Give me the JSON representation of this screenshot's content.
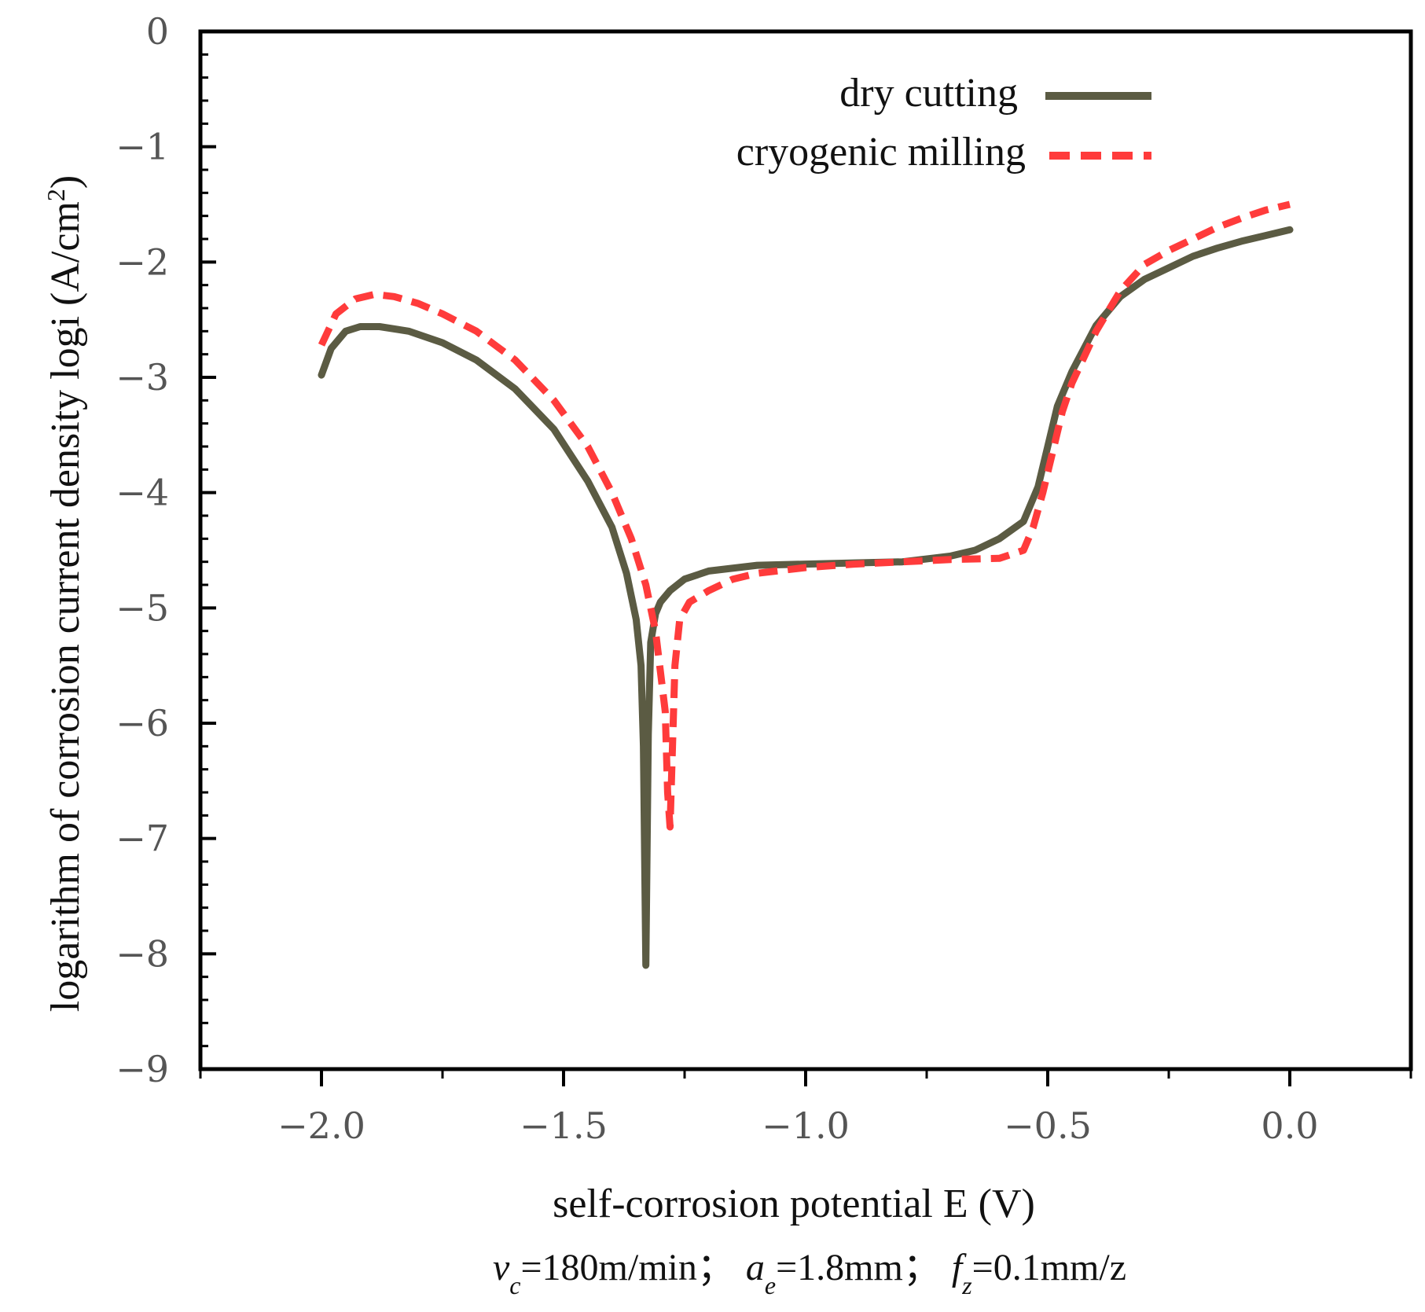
{
  "chart_data": {
    "type": "line",
    "xlabel": "self-corrosion potential E (V)",
    "ylabel_main": "logarithm of corrosion current density logi (A/cm",
    "ylabel_sup": "2",
    "ylabel_end": ")",
    "xlim": [
      -2.25,
      0.25
    ],
    "ylim": [
      -9,
      0
    ],
    "x_ticks": [
      -2.0,
      -1.5,
      -1.0,
      -0.5,
      0.0
    ],
    "x_tick_labels": [
      "−2.0",
      "−1.5",
      "−1.0",
      "−0.5",
      "0.0"
    ],
    "y_ticks": [
      0,
      -1,
      -2,
      -3,
      -4,
      -5,
      -6,
      -7,
      -8,
      -9
    ],
    "y_tick_labels": [
      "0",
      "−1",
      "−2",
      "−3",
      "−4",
      "−5",
      "−6",
      "−7",
      "−8",
      "−9"
    ],
    "grid": false,
    "legend_position": "top-right",
    "series": [
      {
        "name": "dry cutting",
        "color": "#5b5b43",
        "style": "solid",
        "x": [
          -2.0,
          -1.98,
          -1.95,
          -1.92,
          -1.88,
          -1.82,
          -1.75,
          -1.68,
          -1.6,
          -1.52,
          -1.45,
          -1.4,
          -1.37,
          -1.35,
          -1.34,
          -1.335,
          -1.33,
          -1.325,
          -1.32,
          -1.31,
          -1.3,
          -1.28,
          -1.25,
          -1.2,
          -1.1,
          -1.0,
          -0.9,
          -0.8,
          -0.7,
          -0.65,
          -0.6,
          -0.55,
          -0.52,
          -0.5,
          -0.48,
          -0.45,
          -0.4,
          -0.35,
          -0.3,
          -0.25,
          -0.2,
          -0.15,
          -0.1,
          -0.05,
          0.0
        ],
        "y": [
          -2.98,
          -2.75,
          -2.6,
          -2.56,
          -2.56,
          -2.6,
          -2.7,
          -2.85,
          -3.1,
          -3.45,
          -3.9,
          -4.3,
          -4.7,
          -5.1,
          -5.5,
          -6.2,
          -8.1,
          -6.1,
          -5.3,
          -5.05,
          -4.95,
          -4.85,
          -4.75,
          -4.68,
          -4.63,
          -4.62,
          -4.61,
          -4.6,
          -4.55,
          -4.5,
          -4.4,
          -4.25,
          -3.95,
          -3.6,
          -3.25,
          -2.95,
          -2.55,
          -2.3,
          -2.15,
          -2.05,
          -1.95,
          -1.88,
          -1.82,
          -1.77,
          -1.72
        ]
      },
      {
        "name": "cryogenic milling",
        "color": "#ff3b3b",
        "style": "dashed",
        "x": [
          -2.0,
          -1.97,
          -1.93,
          -1.89,
          -1.85,
          -1.8,
          -1.75,
          -1.68,
          -1.6,
          -1.52,
          -1.45,
          -1.4,
          -1.36,
          -1.33,
          -1.31,
          -1.3,
          -1.29,
          -1.285,
          -1.28,
          -1.275,
          -1.27,
          -1.26,
          -1.24,
          -1.2,
          -1.15,
          -1.1,
          -1.0,
          -0.9,
          -0.8,
          -0.7,
          -0.6,
          -0.55,
          -0.53,
          -0.51,
          -0.49,
          -0.47,
          -0.45,
          -0.4,
          -0.35,
          -0.3,
          -0.25,
          -0.2,
          -0.15,
          -0.1,
          -0.05,
          0.0
        ],
        "y": [
          -2.72,
          -2.45,
          -2.32,
          -2.28,
          -2.3,
          -2.36,
          -2.45,
          -2.6,
          -2.85,
          -3.2,
          -3.6,
          -4.0,
          -4.4,
          -4.8,
          -5.2,
          -5.55,
          -5.9,
          -6.6,
          -6.9,
          -6.2,
          -5.5,
          -5.1,
          -4.95,
          -4.85,
          -4.75,
          -4.7,
          -4.65,
          -4.62,
          -4.6,
          -4.58,
          -4.57,
          -4.5,
          -4.3,
          -4.0,
          -3.65,
          -3.3,
          -3.05,
          -2.6,
          -2.25,
          -2.02,
          -1.9,
          -1.8,
          -1.7,
          -1.62,
          -1.55,
          -1.5
        ]
      }
    ]
  },
  "caption": {
    "vc_var": "v",
    "vc_sub": "c",
    "vc_val": "=180m/min；",
    "ae_var": "a",
    "ae_sub": "e",
    "ae_val": "=1.8mm；",
    "fz_var": "f",
    "fz_sub": "z",
    "fz_val": "=0.1mm/z"
  }
}
